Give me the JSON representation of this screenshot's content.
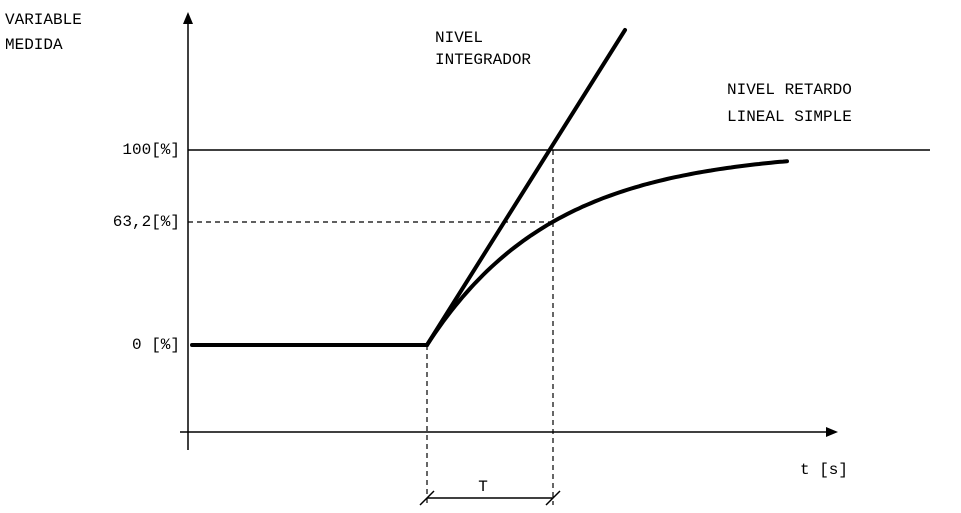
{
  "axis_labels": {
    "y": [
      "VARIABLE",
      "MEDIDA"
    ],
    "x": "t [s]"
  },
  "levels": [
    "100[%]",
    "63,2[%]",
    "0 [%]"
  ],
  "curves": {
    "integrator": [
      "NIVEL",
      "INTEGRADOR"
    ],
    "first_order": [
      "NIVEL RETARDO",
      "LINEAL SIMPLE"
    ]
  },
  "time_constant": "T"
}
